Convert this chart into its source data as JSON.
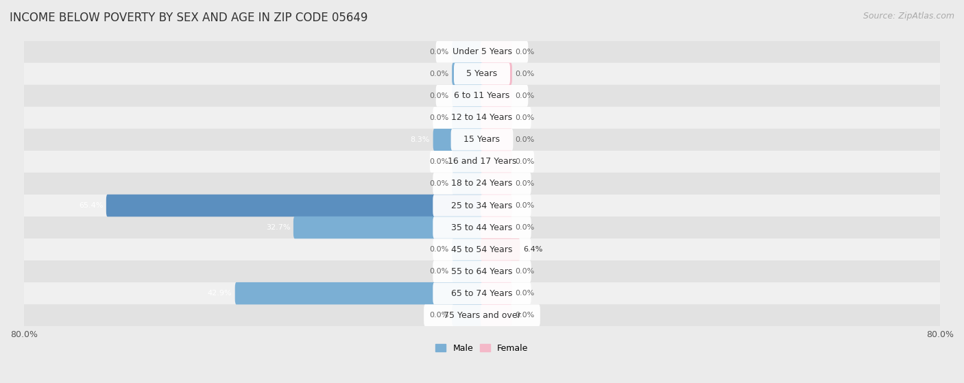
{
  "title": "INCOME BELOW POVERTY BY SEX AND AGE IN ZIP CODE 05649",
  "source": "Source: ZipAtlas.com",
  "categories": [
    "Under 5 Years",
    "5 Years",
    "6 to 11 Years",
    "12 to 14 Years",
    "15 Years",
    "16 and 17 Years",
    "18 to 24 Years",
    "25 to 34 Years",
    "35 to 44 Years",
    "45 to 54 Years",
    "55 to 64 Years",
    "65 to 74 Years",
    "75 Years and over"
  ],
  "male_values": [
    0.0,
    0.0,
    0.0,
    0.0,
    8.3,
    0.0,
    0.0,
    65.4,
    32.7,
    0.0,
    0.0,
    42.9,
    0.0
  ],
  "female_values": [
    0.0,
    0.0,
    0.0,
    0.0,
    0.0,
    0.0,
    0.0,
    0.0,
    0.0,
    6.4,
    0.0,
    0.0,
    0.0
  ],
  "male_color": "#7bafd4",
  "male_highlight_color": "#5b8fbf",
  "female_color": "#f4b8c8",
  "female_highlight_color": "#e8607a",
  "male_label": "Male",
  "female_label": "Female",
  "xlim": 80.0,
  "background_color": "#ebebeb",
  "row_colors": [
    "#e2e2e2",
    "#f0f0f0"
  ],
  "title_fontsize": 12,
  "source_fontsize": 9,
  "axis_label_fontsize": 9,
  "bar_label_fontsize": 8,
  "cat_label_fontsize": 9,
  "stub_size": 5.0,
  "bar_height": 0.52
}
